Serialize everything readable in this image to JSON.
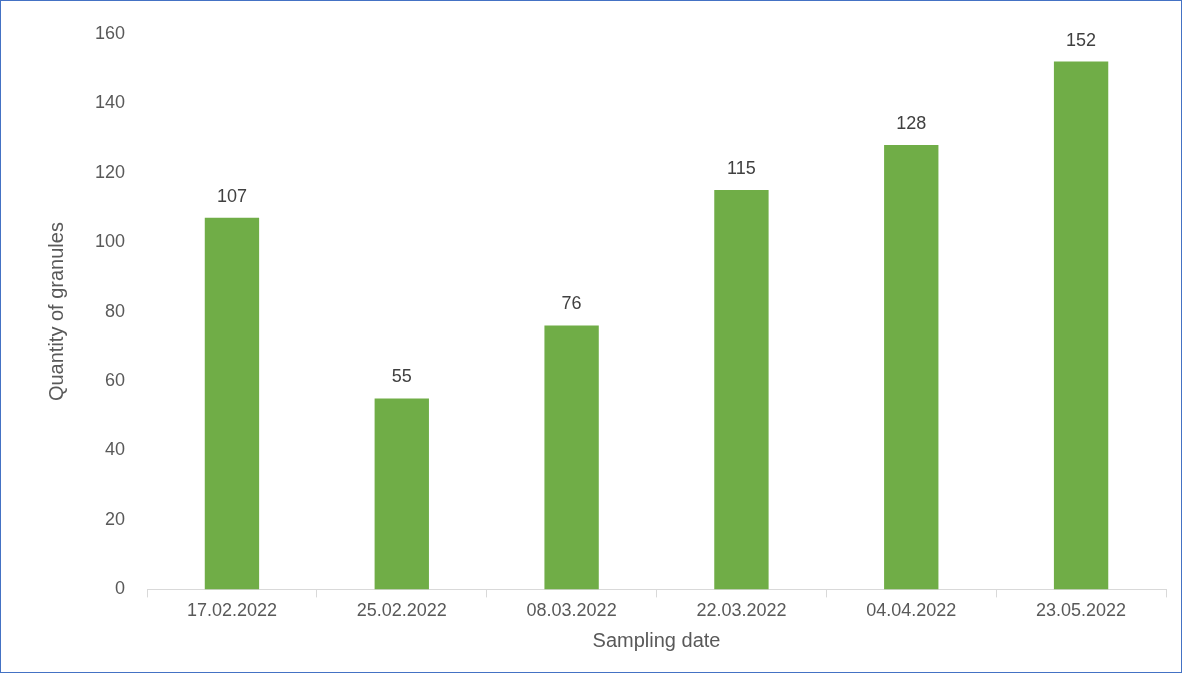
{
  "chart_data": {
    "type": "bar",
    "xlabel": "Sampling date",
    "ylabel": "Quantity of granules",
    "categories": [
      "17.02.2022",
      "25.02.2022",
      "08.03.2022",
      "22.03.2022",
      "04.04.2022",
      "23.05.2022"
    ],
    "values": [
      107,
      55,
      76,
      115,
      128,
      152
    ],
    "color": "#70ad47",
    "ylim": [
      0,
      160
    ],
    "yticks": [
      0,
      20,
      40,
      60,
      80,
      100,
      120,
      140,
      160
    ],
    "data_labels": true
  }
}
